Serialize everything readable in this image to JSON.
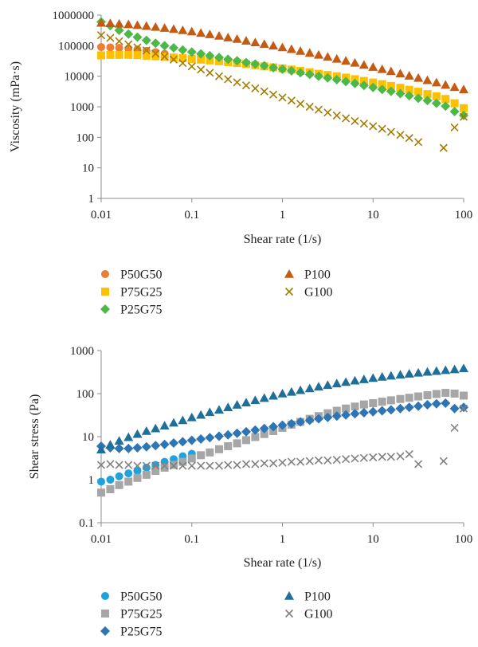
{
  "charts": [
    {
      "xlabel": "Shear rate (1/s)",
      "ylabel": "Viscosity (mPa·s)",
      "x_tick_labels": [
        "0.01",
        "0.1",
        "1",
        "10",
        "100"
      ],
      "y_tick_labels": [
        "1",
        "10",
        "100",
        "1000",
        "10000",
        "100000",
        "1000000"
      ]
    },
    {
      "xlabel": "Shear rate (1/s)",
      "ylabel": "Shear stress (Pa)",
      "x_tick_labels": [
        "0.01",
        "0.1",
        "1",
        "10",
        "100"
      ],
      "y_tick_labels": [
        "0.1",
        "1",
        "10",
        "100",
        "1000"
      ]
    }
  ],
  "chart_data": [
    {
      "type": "scatter",
      "xscale": "log",
      "yscale": "log",
      "xlim": [
        0.01,
        100
      ],
      "ylim": [
        1,
        1000000
      ],
      "grid": false,
      "legend": "bottom",
      "series": [
        {
          "name": "P50G50",
          "marker": "circle",
          "color": "#ed7d31",
          "x": [
            0.01,
            0.0126,
            0.0158,
            0.02,
            0.0251,
            0.0316,
            0.0398,
            0.0501
          ],
          "y": [
            90000,
            88000,
            85000,
            80000,
            75000,
            68000,
            61000,
            54000
          ]
        },
        {
          "name": "P75G25",
          "marker": "square",
          "color": "#ffc000",
          "x": [
            0.01,
            0.0126,
            0.0158,
            0.02,
            0.0251,
            0.0316,
            0.0398,
            0.0501,
            0.0631,
            0.0794,
            0.1,
            0.126,
            0.158,
            0.2,
            0.251,
            0.316,
            0.398,
            0.501,
            0.631,
            0.794,
            1,
            1.26,
            1.58,
            2,
            2.51,
            3.16,
            3.98,
            5.01,
            6.31,
            7.94,
            10,
            12.6,
            15.8,
            20,
            25.1,
            31.6,
            39.8,
            50.1,
            63.1,
            79.4,
            100
          ],
          "y": [
            48000,
            50000,
            50000,
            50000,
            49000,
            47000,
            45000,
            43000,
            41000,
            39000,
            37000,
            35000,
            33000,
            31000,
            29000,
            27000,
            25000,
            23000,
            21000,
            19500,
            18000,
            16500,
            15000,
            13500,
            12000,
            11000,
            10000,
            9000,
            8000,
            7000,
            6200,
            5500,
            4800,
            4200,
            3600,
            3100,
            2600,
            2200,
            1800,
            1300,
            900
          ]
        },
        {
          "name": "P25G75",
          "marker": "diamond",
          "color": "#4db848",
          "x": [
            0.01,
            0.0126,
            0.0158,
            0.02,
            0.0251,
            0.0316,
            0.0398,
            0.0501,
            0.0631,
            0.0794,
            0.1,
            0.126,
            0.158,
            0.2,
            0.251,
            0.316,
            0.398,
            0.501,
            0.631,
            0.794,
            1,
            1.26,
            1.58,
            2,
            2.51,
            3.16,
            3.98,
            5.01,
            6.31,
            7.94,
            10,
            12.6,
            15.8,
            20,
            25.1,
            31.6,
            39.8,
            50.1,
            63.1,
            79.4,
            100
          ],
          "y": [
            600000,
            450000,
            320000,
            240000,
            190000,
            150000,
            120000,
            100000,
            85000,
            72000,
            62000,
            54000,
            47000,
            41000,
            36000,
            32000,
            28000,
            25000,
            22000,
            19000,
            17000,
            15000,
            13000,
            11500,
            10000,
            8800,
            7700,
            6700,
            5800,
            5000,
            4300,
            3700,
            3200,
            2700,
            2300,
            1900,
            1600,
            1300,
            1050,
            700,
            520
          ]
        },
        {
          "name": "P100",
          "marker": "triangle",
          "color": "#c55a11",
          "x": [
            0.01,
            0.0126,
            0.0158,
            0.02,
            0.0251,
            0.0316,
            0.0398,
            0.0501,
            0.0631,
            0.0794,
            0.1,
            0.126,
            0.158,
            0.2,
            0.251,
            0.316,
            0.398,
            0.501,
            0.631,
            0.794,
            1,
            1.26,
            1.58,
            2,
            2.51,
            3.16,
            3.98,
            5.01,
            6.31,
            7.94,
            10,
            12.6,
            15.8,
            20,
            25.1,
            31.6,
            39.8,
            50.1,
            63.1,
            79.4,
            100
          ],
          "y": [
            560000,
            540000,
            520000,
            500000,
            470000,
            440000,
            410000,
            380000,
            350000,
            320000,
            290000,
            260000,
            235000,
            210000,
            185000,
            165000,
            145000,
            128000,
            113000,
            100000,
            88000,
            77000,
            67000,
            58000,
            50000,
            43000,
            37000,
            32000,
            27500,
            23500,
            20000,
            17000,
            14500,
            12300,
            10400,
            8800,
            7400,
            6200,
            5200,
            4400,
            3700
          ]
        },
        {
          "name": "G100",
          "marker": "x",
          "color": "#a37c00",
          "x": [
            0.01,
            0.0126,
            0.0158,
            0.02,
            0.0251,
            0.0316,
            0.0398,
            0.0501,
            0.0631,
            0.0794,
            0.1,
            0.126,
            0.158,
            0.2,
            0.251,
            0.316,
            0.398,
            0.501,
            0.631,
            0.794,
            1,
            1.26,
            1.58,
            2,
            2.51,
            3.16,
            3.98,
            5.01,
            6.31,
            7.94,
            10,
            12.6,
            15.8,
            20,
            25.1,
            31.6,
            60,
            79.4,
            100
          ],
          "y": [
            220000,
            180000,
            140000,
            110000,
            88000,
            70000,
            55000,
            44000,
            35000,
            27000,
            21000,
            16500,
            13000,
            10000,
            8000,
            6300,
            5000,
            4000,
            3200,
            2500,
            2000,
            1600,
            1250,
            1000,
            800,
            650,
            520,
            420,
            340,
            280,
            230,
            190,
            150,
            120,
            95,
            70,
            45,
            210,
            470
          ]
        }
      ]
    },
    {
      "type": "scatter",
      "xscale": "log",
      "yscale": "log",
      "xlim": [
        0.01,
        100
      ],
      "ylim": [
        0.1,
        1000
      ],
      "grid": false,
      "legend": "bottom",
      "series": [
        {
          "name": "P50G50",
          "marker": "circle",
          "color": "#1fa3df",
          "x": [
            0.01,
            0.0126,
            0.0158,
            0.02,
            0.0251,
            0.0316,
            0.0398,
            0.0501,
            0.0631,
            0.0794,
            0.1
          ],
          "y": [
            0.9,
            1.0,
            1.2,
            1.4,
            1.6,
            1.9,
            2.2,
            2.6,
            3.0,
            3.5,
            4.0
          ]
        },
        {
          "name": "P75G25",
          "marker": "square",
          "color": "#a6a6a6",
          "x": [
            0.01,
            0.0126,
            0.0158,
            0.02,
            0.0251,
            0.0316,
            0.0398,
            0.0501,
            0.0631,
            0.0794,
            0.1,
            0.126,
            0.158,
            0.2,
            0.251,
            0.316,
            0.398,
            0.501,
            0.631,
            0.794,
            1,
            1.26,
            1.58,
            2,
            2.51,
            3.16,
            3.98,
            5.01,
            6.31,
            7.94,
            10,
            12.6,
            15.8,
            20,
            25.1,
            31.6,
            39.8,
            50.1,
            63.1,
            79.4,
            100
          ],
          "y": [
            0.5,
            0.6,
            0.75,
            0.9,
            1.1,
            1.3,
            1.6,
            1.9,
            2.2,
            2.6,
            3.1,
            3.7,
            4.3,
            5.1,
            6.0,
            7.0,
            8.3,
            9.8,
            11.5,
            13.5,
            16,
            19,
            22,
            26,
            30,
            35,
            40,
            45,
            50,
            56,
            60,
            65,
            70,
            75,
            80,
            86,
            92,
            98,
            104,
            100,
            90
          ]
        },
        {
          "name": "P25G75",
          "marker": "diamond",
          "color": "#2e75b6",
          "x": [
            0.01,
            0.0126,
            0.0158,
            0.02,
            0.0251,
            0.0316,
            0.0398,
            0.0501,
            0.0631,
            0.0794,
            0.1,
            0.126,
            0.158,
            0.2,
            0.251,
            0.316,
            0.398,
            0.501,
            0.631,
            0.794,
            1,
            1.26,
            1.58,
            2,
            2.51,
            3.16,
            3.98,
            5.01,
            6.31,
            7.94,
            10,
            12.6,
            15.8,
            20,
            25.1,
            31.6,
            39.8,
            50.1,
            63.1,
            79.4,
            100
          ],
          "y": [
            6.0,
            5.5,
            5.3,
            5.3,
            5.5,
            5.8,
            6.2,
            6.6,
            7.1,
            7.6,
            8.2,
            8.8,
            9.5,
            10.2,
            11.0,
            12.0,
            13.0,
            14.2,
            15.5,
            17,
            18.5,
            20,
            22,
            24,
            26,
            28,
            30,
            32,
            34,
            36,
            38,
            40,
            42,
            45,
            48,
            51,
            55,
            58,
            60,
            45,
            48
          ]
        },
        {
          "name": "P100",
          "marker": "triangle",
          "color": "#1f6f9b",
          "x": [
            0.01,
            0.0126,
            0.0158,
            0.02,
            0.0251,
            0.0316,
            0.0398,
            0.0501,
            0.0631,
            0.0794,
            0.1,
            0.126,
            0.158,
            0.2,
            0.251,
            0.316,
            0.398,
            0.501,
            0.631,
            0.794,
            1,
            1.26,
            1.58,
            2,
            2.51,
            3.16,
            3.98,
            5.01,
            6.31,
            7.94,
            10,
            12.6,
            15.8,
            20,
            25.1,
            31.6,
            39.8,
            50.1,
            63.1,
            79.4,
            100
          ],
          "y": [
            5.0,
            6.5,
            8.0,
            9.7,
            11.5,
            13.5,
            15.5,
            18.0,
            21,
            24,
            28,
            32,
            37,
            42,
            48,
            55,
            62,
            70,
            79,
            89,
            100,
            110,
            120,
            132,
            145,
            158,
            172,
            186,
            200,
            215,
            230,
            245,
            260,
            275,
            290,
            305,
            320,
            335,
            350,
            365,
            385
          ]
        },
        {
          "name": "G100",
          "marker": "x",
          "color": "#808080",
          "x": [
            0.01,
            0.0126,
            0.0158,
            0.02,
            0.0251,
            0.0316,
            0.0398,
            0.0501,
            0.0631,
            0.0794,
            0.1,
            0.126,
            0.158,
            0.2,
            0.251,
            0.316,
            0.398,
            0.501,
            0.631,
            0.794,
            1,
            1.26,
            1.58,
            2,
            2.51,
            3.16,
            3.98,
            5.01,
            6.31,
            7.94,
            10,
            12.6,
            15.8,
            20,
            25.1,
            31.6,
            60,
            79.4,
            100
          ],
          "y": [
            2.2,
            2.3,
            2.2,
            2.2,
            2.1,
            2.1,
            2.1,
            2.1,
            2.1,
            2.1,
            2.1,
            2.1,
            2.1,
            2.1,
            2.2,
            2.2,
            2.3,
            2.3,
            2.4,
            2.4,
            2.5,
            2.6,
            2.6,
            2.7,
            2.8,
            2.8,
            2.9,
            3.0,
            3.1,
            3.2,
            3.3,
            3.4,
            3.4,
            3.5,
            3.9,
            2.3,
            2.7,
            16,
            45
          ]
        }
      ]
    }
  ]
}
